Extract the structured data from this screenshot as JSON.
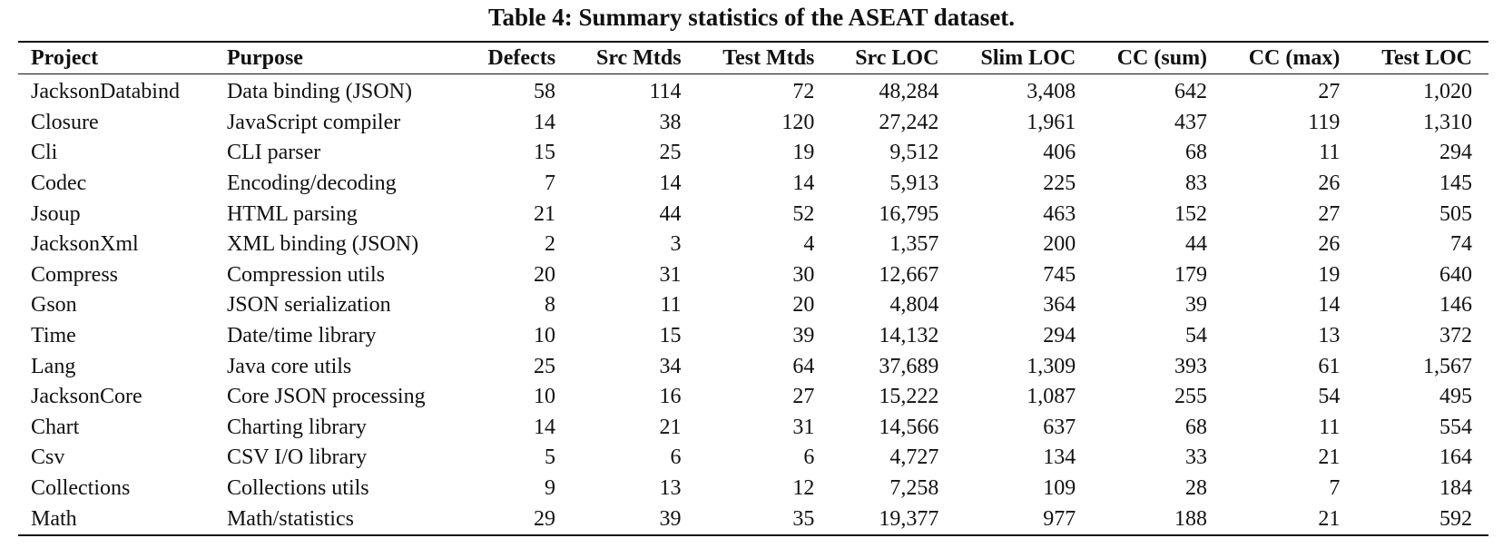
{
  "caption": "Table 4: Summary statistics of the ASEAT dataset.",
  "columns": [
    "Project",
    "Purpose",
    "Defects",
    "Src Mtds",
    "Test Mtds",
    "Src LOC",
    "Slim LOC",
    "CC (sum)",
    "CC (max)",
    "Test LOC"
  ],
  "rows": [
    [
      "JacksonDatabind",
      "Data binding (JSON)",
      "58",
      "114",
      "72",
      "48,284",
      "3,408",
      "642",
      "27",
      "1,020"
    ],
    [
      "Closure",
      "JavaScript compiler",
      "14",
      "38",
      "120",
      "27,242",
      "1,961",
      "437",
      "119",
      "1,310"
    ],
    [
      "Cli",
      "CLI parser",
      "15",
      "25",
      "19",
      "9,512",
      "406",
      "68",
      "11",
      "294"
    ],
    [
      "Codec",
      "Encoding/decoding",
      "7",
      "14",
      "14",
      "5,913",
      "225",
      "83",
      "26",
      "145"
    ],
    [
      "Jsoup",
      "HTML parsing",
      "21",
      "44",
      "52",
      "16,795",
      "463",
      "152",
      "27",
      "505"
    ],
    [
      "JacksonXml",
      "XML binding (JSON)",
      "2",
      "3",
      "4",
      "1,357",
      "200",
      "44",
      "26",
      "74"
    ],
    [
      "Compress",
      "Compression utils",
      "20",
      "31",
      "30",
      "12,667",
      "745",
      "179",
      "19",
      "640"
    ],
    [
      "Gson",
      "JSON serialization",
      "8",
      "11",
      "20",
      "4,804",
      "364",
      "39",
      "14",
      "146"
    ],
    [
      "Time",
      "Date/time library",
      "10",
      "15",
      "39",
      "14,132",
      "294",
      "54",
      "13",
      "372"
    ],
    [
      "Lang",
      "Java core utils",
      "25",
      "34",
      "64",
      "37,689",
      "1,309",
      "393",
      "61",
      "1,567"
    ],
    [
      "JacksonCore",
      "Core JSON processing",
      "10",
      "16",
      "27",
      "15,222",
      "1,087",
      "255",
      "54",
      "495"
    ],
    [
      "Chart",
      "Charting library",
      "14",
      "21",
      "31",
      "14,566",
      "637",
      "68",
      "11",
      "554"
    ],
    [
      "Csv",
      "CSV I/O library",
      "5",
      "6",
      "6",
      "4,727",
      "134",
      "33",
      "21",
      "164"
    ],
    [
      "Collections",
      "Collections utils",
      "9",
      "13",
      "12",
      "7,258",
      "109",
      "28",
      "7",
      "184"
    ],
    [
      "Math",
      "Math/statistics",
      "29",
      "39",
      "35",
      "19,377",
      "977",
      "188",
      "21",
      "592"
    ]
  ]
}
